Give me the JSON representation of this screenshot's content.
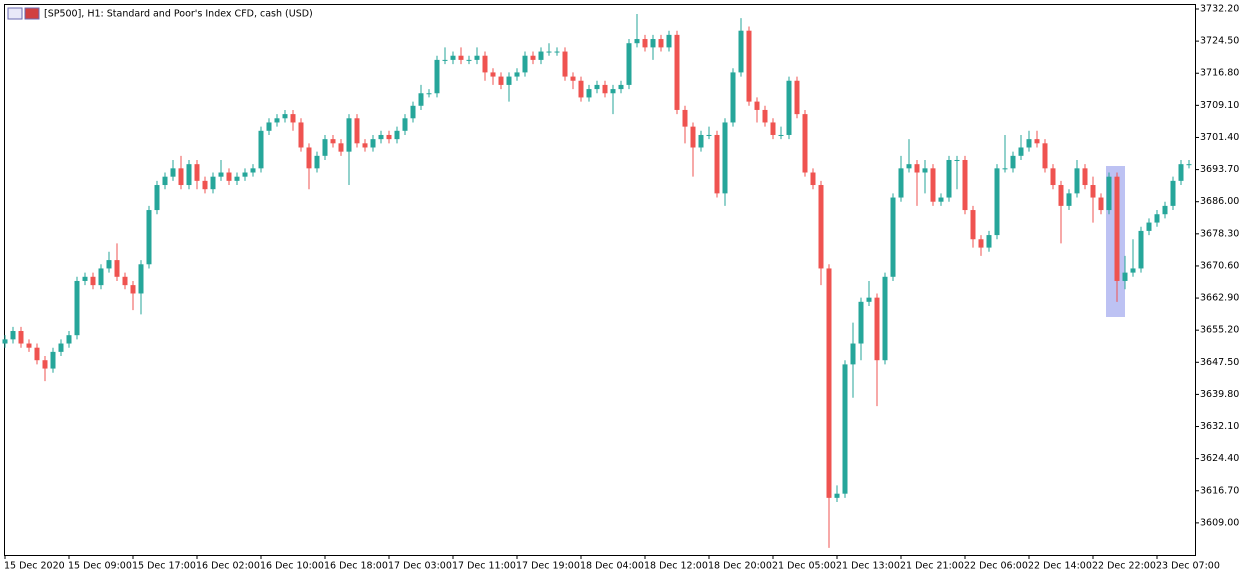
{
  "chart_data": {
    "type": "candlestick",
    "title": "[SP500], H1:  Standard and Poor's Index CFD, cash (USD)",
    "categories": [
      "15 Dec 2020",
      null,
      null,
      null,
      null,
      null,
      null,
      null,
      "15 Dec 09:00",
      null,
      null,
      null,
      null,
      null,
      null,
      null,
      "15 Dec 17:00",
      null,
      null,
      null,
      null,
      null,
      null,
      null,
      "16 Dec 02:00",
      null,
      null,
      null,
      null,
      null,
      null,
      null,
      "16 Dec 10:00",
      null,
      null,
      null,
      null,
      null,
      null,
      null,
      "16 Dec 18:00",
      null,
      null,
      null,
      null,
      null,
      null,
      null,
      "17 Dec 03:00",
      null,
      null,
      null,
      null,
      null,
      null,
      null,
      "17 Dec 11:00",
      null,
      null,
      null,
      null,
      null,
      null,
      null,
      "17 Dec 19:00",
      null,
      null,
      null,
      null,
      null,
      null,
      null,
      "18 Dec 04:00",
      null,
      null,
      null,
      null,
      null,
      null,
      null,
      "18 Dec 12:00",
      null,
      null,
      null,
      null,
      null,
      null,
      null,
      "18 Dec 20:00",
      null,
      null,
      null,
      null,
      null,
      null,
      null,
      "21 Dec 05:00",
      null,
      null,
      null,
      null,
      null,
      null,
      null,
      "21 Dec 13:00",
      null,
      null,
      null,
      null,
      null,
      null,
      null,
      "21 Dec 21:00",
      null,
      null,
      null,
      null,
      null,
      null,
      null,
      "22 Dec 06:00",
      null,
      null,
      null,
      null,
      null,
      null,
      null,
      "22 Dec 14:00",
      null,
      null,
      null,
      null,
      null,
      null,
      null,
      "22 Dec 22:00",
      null,
      null,
      null,
      null,
      null,
      null,
      null,
      "23 Dec 07:00",
      null,
      null,
      null,
      null
    ],
    "open": [
      3652,
      3653,
      3655,
      3652,
      3651,
      3648,
      3646,
      3650,
      3652,
      3654,
      3667,
      3668,
      3666,
      3670,
      3672,
      3668,
      3666,
      3664,
      3671,
      3684,
      3690,
      3692,
      3694,
      3690,
      3695,
      3691,
      3689,
      3692,
      3693,
      3691,
      3692,
      3693,
      3694,
      3703,
      3705,
      3706,
      3707,
      3705,
      3699,
      3694,
      3697,
      3701,
      3700,
      3698,
      3706,
      3700,
      3699,
      3701,
      3702,
      3701,
      3703,
      3706,
      3709,
      3712,
      3712,
      3720,
      3720,
      3721,
      3720,
      3720,
      3721,
      3717,
      3716,
      3714,
      3716,
      3717,
      3721,
      3720,
      3722,
      3722,
      3722,
      3716,
      3715,
      3711,
      3713,
      3714,
      3712,
      3713,
      3714,
      3724,
      3725,
      3723,
      3725,
      3723,
      3726,
      3708,
      3704,
      3699,
      3702,
      3702,
      3688,
      3705,
      3717,
      3727,
      3710,
      3708,
      3705,
      3702,
      3702,
      3715,
      3707,
      3693,
      3690,
      3670,
      3615,
      3616,
      3647,
      3652,
      3662,
      3663,
      3648,
      3668,
      3687,
      3694,
      3695,
      3693,
      3694,
      3686,
      3687,
      3696,
      3696,
      3684,
      3677,
      3675,
      3678,
      3694,
      3694,
      3697,
      3699,
      3701,
      3700,
      3694,
      3690,
      3685,
      3688,
      3694,
      3690,
      3687,
      3684,
      3692,
      3667,
      3669,
      3670,
      3679,
      3681,
      3683,
      3685,
      3691,
      3695
    ],
    "high": [
      3654,
      3656,
      3656,
      3653,
      3652,
      3649,
      3651,
      3653,
      3655,
      3668,
      3669,
      3669,
      3671,
      3674,
      3676,
      3669,
      3667,
      3672,
      3685,
      3691,
      3693,
      3696,
      3697,
      3696,
      3696,
      3692,
      3693,
      3696,
      3694,
      3693,
      3694,
      3695,
      3704,
      3706,
      3707,
      3708,
      3708,
      3706,
      3700,
      3698,
      3702,
      3702,
      3701,
      3707,
      3707,
      3701,
      3702,
      3703,
      3703,
      3704,
      3707,
      3710,
      3714,
      3713,
      3721,
      3723,
      3722,
      3723,
      3721,
      3723,
      3722,
      3718,
      3717,
      3717,
      3718,
      3722,
      3722,
      3723,
      3724,
      3723,
      3723,
      3717,
      3716,
      3714,
      3715,
      3715,
      3714,
      3715,
      3725,
      3731,
      3726,
      3726,
      3726,
      3727,
      3727,
      3709,
      3705,
      3703,
      3704,
      3703,
      3706,
      3718,
      3730,
      3728,
      3711,
      3709,
      3706,
      3704,
      3716,
      3716,
      3708,
      3694,
      3691,
      3671,
      3618,
      3648,
      3657,
      3663,
      3667,
      3664,
      3669,
      3688,
      3697,
      3701,
      3696,
      3696,
      3695,
      3688,
      3697,
      3697,
      3697,
      3685,
      3678,
      3679,
      3695,
      3702,
      3698,
      3702,
      3703,
      3703,
      3701,
      3695,
      3691,
      3689,
      3696,
      3695,
      3692,
      3688,
      3693,
      3693,
      3673,
      3677,
      3680,
      3682,
      3684,
      3686,
      3692,
      3696,
      3696
    ],
    "low": [
      3651,
      3652,
      3651,
      3650,
      3647,
      3643,
      3645,
      3649,
      3651,
      3653,
      3666,
      3665,
      3665,
      3669,
      3667,
      3665,
      3660,
      3659,
      3670,
      3683,
      3689,
      3691,
      3689,
      3689,
      3689,
      3688,
      3688,
      3691,
      3690,
      3690,
      3691,
      3692,
      3693,
      3702,
      3704,
      3705,
      3703,
      3698,
      3689,
      3693,
      3696,
      3699,
      3697,
      3690,
      3699,
      3698,
      3698,
      3700,
      3700,
      3700,
      3702,
      3705,
      3708,
      3711,
      3711,
      3719,
      3719,
      3719,
      3719,
      3719,
      3715,
      3714,
      3713,
      3710,
      3715,
      3716,
      3719,
      3719,
      3721,
      3721,
      3715,
      3713,
      3710,
      3710,
      3712,
      3711,
      3707,
      3712,
      3713,
      3723,
      3722,
      3720,
      3722,
      3722,
      3707,
      3700,
      3692,
      3698,
      3701,
      3687,
      3685,
      3704,
      3716,
      3709,
      3705,
      3704,
      3701,
      3701,
      3701,
      3706,
      3692,
      3689,
      3666,
      3603,
      3614,
      3615,
      3639,
      3648,
      3661,
      3637,
      3647,
      3667,
      3686,
      3693,
      3685,
      3688,
      3685,
      3685,
      3686,
      3689,
      3683,
      3675,
      3673,
      3674,
      3677,
      3693,
      3693,
      3696,
      3698,
      3699,
      3693,
      3689,
      3676,
      3684,
      3687,
      3689,
      3681,
      3683,
      3683,
      3662,
      3665,
      3668,
      3669,
      3678,
      3680,
      3682,
      3684,
      3690,
      3694
    ],
    "close": [
      3653,
      3655,
      3652,
      3651,
      3648,
      3646,
      3650,
      3652,
      3654,
      3667,
      3668,
      3666,
      3670,
      3672,
      3668,
      3666,
      3664,
      3671,
      3684,
      3690,
      3692,
      3694,
      3690,
      3695,
      3691,
      3689,
      3692,
      3693,
      3691,
      3692,
      3693,
      3694,
      3703,
      3705,
      3706,
      3707,
      3705,
      3699,
      3694,
      3697,
      3701,
      3700,
      3698,
      3706,
      3700,
      3699,
      3701,
      3702,
      3701,
      3703,
      3706,
      3709,
      3712,
      3712,
      3720,
      3720,
      3721,
      3720,
      3720,
      3721,
      3717,
      3716,
      3714,
      3716,
      3717,
      3721,
      3720,
      3722,
      3722,
      3722,
      3716,
      3715,
      3711,
      3713,
      3714,
      3712,
      3713,
      3714,
      3724,
      3725,
      3723,
      3725,
      3723,
      3726,
      3708,
      3704,
      3699,
      3702,
      3702,
      3688,
      3705,
      3717,
      3727,
      3710,
      3708,
      3705,
      3702,
      3702,
      3715,
      3707,
      3693,
      3690,
      3670,
      3615,
      3616,
      3647,
      3652,
      3662,
      3663,
      3648,
      3668,
      3687,
      3694,
      3695,
      3693,
      3694,
      3686,
      3687,
      3696,
      3696,
      3684,
      3677,
      3675,
      3678,
      3694,
      3694,
      3697,
      3699,
      3701,
      3700,
      3694,
      3690,
      3685,
      3688,
      3694,
      3690,
      3687,
      3684,
      3692,
      3667,
      3669,
      3670,
      3679,
      3681,
      3683,
      3685,
      3691,
      3695,
      3695
    ],
    "up_color": "#26a69a",
    "down_color": "#ef5350",
    "ylim": [
      3601.3,
      3733.4
    ],
    "yticks": [
      {
        "value": 3732.2,
        "label": "3732.20"
      },
      {
        "value": 3724.5,
        "label": "3724.50"
      },
      {
        "value": 3716.8,
        "label": "3716.80"
      },
      {
        "value": 3709.1,
        "label": "3709.10"
      },
      {
        "value": 3701.4,
        "label": "3701.40"
      },
      {
        "value": 3693.7,
        "label": "3693.70"
      },
      {
        "value": 3686,
        "label": "3686.00"
      },
      {
        "value": 3678.3,
        "label": "3678.30"
      },
      {
        "value": 3670.6,
        "label": "3670.60"
      },
      {
        "value": 3662.9,
        "label": "3662.90"
      },
      {
        "value": 3655.2,
        "label": "3655.20"
      },
      {
        "value": 3647.5,
        "label": "3647.50"
      },
      {
        "value": 3639.8,
        "label": "3639.80"
      },
      {
        "value": 3632.1,
        "label": "3632.10"
      },
      {
        "value": 3624.4,
        "label": "3624.40"
      },
      {
        "value": 3616.7,
        "label": "3616.70"
      },
      {
        "value": 3609,
        "label": "3609.00"
      }
    ],
    "grid": false
  }
}
